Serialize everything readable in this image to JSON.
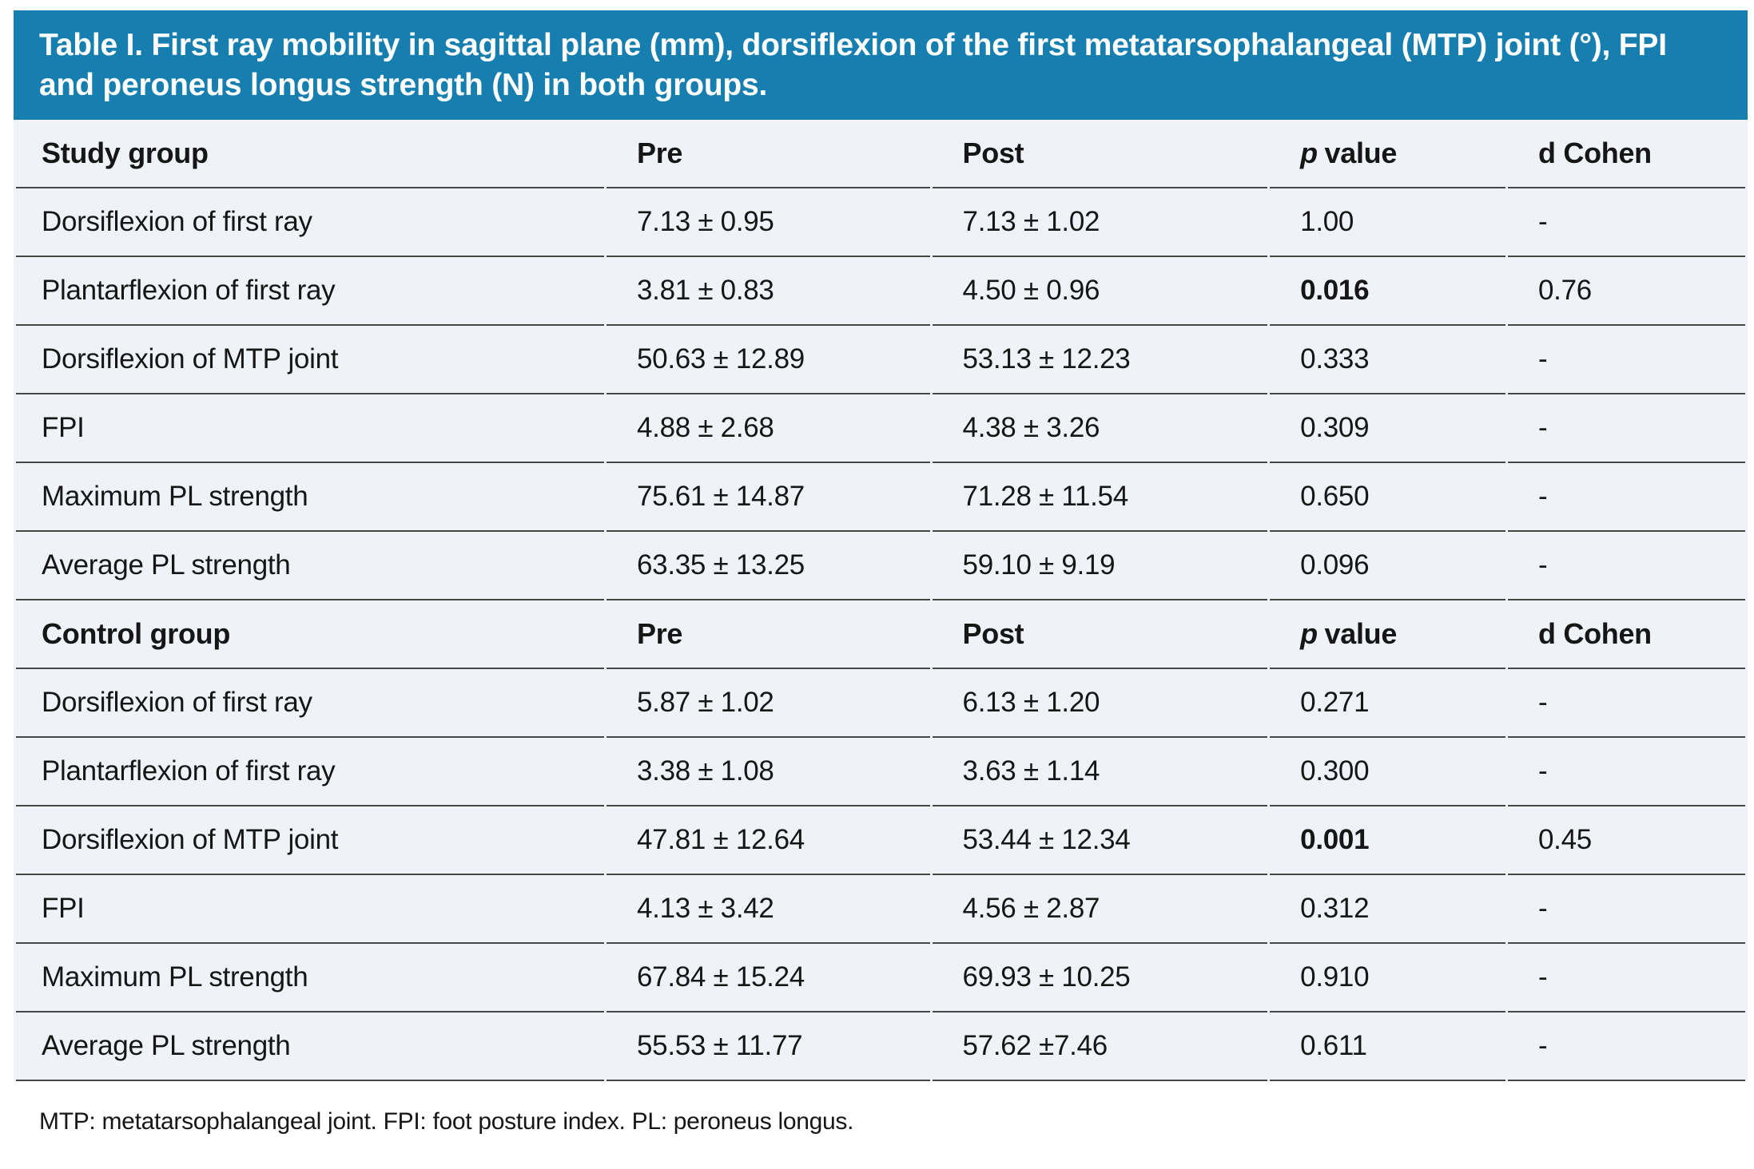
{
  "colors": {
    "banner_bg": "#177fb0",
    "title_text": "#ffffff",
    "row_bg": "#eff2f7",
    "line": "#454545",
    "text": "#161616"
  },
  "table": {
    "title": "Table I. First ray mobility in sagittal plane (mm), dorsiflexion of the first metatarsophalangeal (MTP) joint (°), FPI and peroneus longus strength (N) in both groups.",
    "header": {
      "pre": "Pre",
      "post": "Post",
      "p_italic": "p",
      "p_rest": "value",
      "d_cohen": "d Cohen"
    },
    "groups": [
      {
        "name": "Study group",
        "rows": [
          {
            "cells": [
              "Dorsiflexion of first ray",
              "7.13 ± 0.95",
              "7.13 ± 1.02",
              "1.00",
              "-"
            ],
            "p_bold": false
          },
          {
            "cells": [
              "Plantarflexion of first ray",
              "3.81 ± 0.83",
              "4.50 ± 0.96",
              "0.016",
              "0.76"
            ],
            "p_bold": true
          },
          {
            "cells": [
              "Dorsiflexion of MTP joint",
              "50.63 ± 12.89",
              "53.13 ± 12.23",
              "0.333",
              "-"
            ],
            "p_bold": false
          },
          {
            "cells": [
              "FPI",
              "4.88 ± 2.68",
              "4.38 ± 3.26",
              "0.309",
              "-"
            ],
            "p_bold": false
          },
          {
            "cells": [
              "Maximum PL strength",
              "75.61 ± 14.87",
              "71.28 ± 11.54",
              "0.650",
              "-"
            ],
            "p_bold": false
          },
          {
            "cells": [
              "Average PL strength",
              "63.35 ± 13.25",
              "59.10 ± 9.19",
              "0.096",
              "-"
            ],
            "p_bold": false
          }
        ]
      },
      {
        "name": "Control group",
        "rows": [
          {
            "cells": [
              "Dorsiflexion of first ray",
              "5.87 ± 1.02",
              "6.13 ± 1.20",
              "0.271",
              "-"
            ],
            "p_bold": false
          },
          {
            "cells": [
              "Plantarflexion of first ray",
              "3.38 ± 1.08",
              "3.63 ± 1.14",
              "0.300",
              "-"
            ],
            "p_bold": false
          },
          {
            "cells": [
              "Dorsiflexion of MTP joint",
              "47.81 ± 12.64",
              "53.44 ± 12.34",
              "0.001",
              "0.45"
            ],
            "p_bold": true
          },
          {
            "cells": [
              "FPI",
              "4.13 ± 3.42",
              "4.56 ± 2.87",
              "0.312",
              "-"
            ],
            "p_bold": false
          },
          {
            "cells": [
              "Maximum PL strength",
              "67.84 ± 15.24",
              "69.93 ± 10.25",
              "0.910",
              "-"
            ],
            "p_bold": false
          },
          {
            "cells": [
              "Average PL strength",
              "55.53 ± 11.77",
              "57.62 ±7.46",
              "0.611",
              "-"
            ],
            "p_bold": false
          }
        ]
      }
    ],
    "footnote": "MTP: metatarsophalangeal joint. FPI: foot posture index. PL: peroneus longus."
  }
}
